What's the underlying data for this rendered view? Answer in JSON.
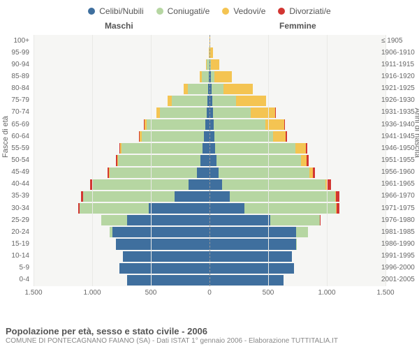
{
  "legend": [
    {
      "label": "Celibi/Nubili",
      "color": "#3f6f9e"
    },
    {
      "label": "Coniugati/e",
      "color": "#b6d6a2"
    },
    {
      "label": "Vedovi/e",
      "color": "#f4c452"
    },
    {
      "label": "Divorziati/e",
      "color": "#d23632"
    }
  ],
  "gender_left": "Maschi",
  "gender_right": "Femmine",
  "y_title_left": "Fasce di età",
  "y_title_right": "Anni di nascita",
  "footer_title": "Popolazione per età, sesso e stato civile - 2006",
  "footer_sub": "COMUNE DI PONTECAGNANO FAIANO (SA) - Dati ISTAT 1° gennaio 2006 - Elaborazione TUTTITALIA.IT",
  "x_ticks": [
    -1500,
    -1000,
    -500,
    0,
    500,
    1000,
    1500
  ],
  "x_tick_labels": [
    "1.500",
    "1.000",
    "500",
    "0",
    "500",
    "1.000",
    "1.500"
  ],
  "x_max": 1500,
  "band_height": 17.14,
  "bar_gap": 2,
  "colors": {
    "single": "#3f6f9e",
    "married": "#b6d6a2",
    "widow": "#f4c452",
    "div": "#d23632",
    "plot_bg": "#f6f6f4"
  },
  "age_labels": [
    "0-4",
    "5-9",
    "10-14",
    "15-19",
    "20-24",
    "25-29",
    "30-34",
    "35-39",
    "40-44",
    "45-49",
    "50-54",
    "55-59",
    "60-64",
    "65-69",
    "70-74",
    "75-79",
    "80-84",
    "85-89",
    "90-94",
    "95-99",
    "100+"
  ],
  "birth_labels": [
    "2001-2005",
    "1996-2000",
    "1991-1995",
    "1986-1990",
    "1981-1985",
    "1976-1980",
    "1971-1975",
    "1966-1970",
    "1961-1965",
    "1956-1960",
    "1951-1955",
    "1946-1950",
    "1941-1945",
    "1936-1940",
    "1931-1935",
    "1926-1930",
    "1921-1925",
    "1916-1920",
    "1911-1915",
    "1906-1910",
    "≤ 1905"
  ],
  "rows": [
    {
      "m": {
        "single": 700,
        "married": 0,
        "widow": 0,
        "div": 0
      },
      "f": {
        "single": 630,
        "married": 0,
        "widow": 0,
        "div": 0
      }
    },
    {
      "m": {
        "single": 770,
        "married": 0,
        "widow": 0,
        "div": 0
      },
      "f": {
        "single": 720,
        "married": 0,
        "widow": 0,
        "div": 0
      }
    },
    {
      "m": {
        "single": 740,
        "married": 0,
        "widow": 0,
        "div": 0
      },
      "f": {
        "single": 700,
        "married": 0,
        "widow": 0,
        "div": 0
      }
    },
    {
      "m": {
        "single": 800,
        "married": 0,
        "widow": 0,
        "div": 0
      },
      "f": {
        "single": 740,
        "married": 5,
        "widow": 0,
        "div": 0
      }
    },
    {
      "m": {
        "single": 830,
        "married": 20,
        "widow": 0,
        "div": 0
      },
      "f": {
        "single": 740,
        "married": 100,
        "widow": 0,
        "div": 0
      }
    },
    {
      "m": {
        "single": 700,
        "married": 220,
        "widow": 0,
        "div": 5
      },
      "f": {
        "single": 520,
        "married": 420,
        "widow": 0,
        "div": 8
      }
    },
    {
      "m": {
        "single": 520,
        "married": 590,
        "widow": 0,
        "div": 10
      },
      "f": {
        "single": 300,
        "married": 780,
        "widow": 5,
        "div": 20
      }
    },
    {
      "m": {
        "single": 300,
        "married": 780,
        "widow": 0,
        "div": 15
      },
      "f": {
        "single": 170,
        "married": 900,
        "widow": 10,
        "div": 25
      }
    },
    {
      "m": {
        "single": 180,
        "married": 820,
        "widow": 0,
        "div": 20
      },
      "f": {
        "single": 110,
        "married": 880,
        "widow": 15,
        "div": 30
      }
    },
    {
      "m": {
        "single": 110,
        "married": 740,
        "widow": 5,
        "div": 15
      },
      "f": {
        "single": 80,
        "married": 770,
        "widow": 30,
        "div": 20
      }
    },
    {
      "m": {
        "single": 80,
        "married": 700,
        "widow": 5,
        "div": 15
      },
      "f": {
        "single": 60,
        "married": 720,
        "widow": 50,
        "div": 15
      }
    },
    {
      "m": {
        "single": 60,
        "married": 690,
        "widow": 10,
        "div": 10
      },
      "f": {
        "single": 50,
        "married": 680,
        "widow": 90,
        "div": 15
      }
    },
    {
      "m": {
        "single": 50,
        "married": 530,
        "widow": 15,
        "div": 5
      },
      "f": {
        "single": 40,
        "married": 500,
        "widow": 110,
        "div": 10
      }
    },
    {
      "m": {
        "single": 35,
        "married": 500,
        "widow": 20,
        "div": 5
      },
      "f": {
        "single": 35,
        "married": 440,
        "widow": 160,
        "div": 10
      }
    },
    {
      "m": {
        "single": 25,
        "married": 400,
        "widow": 30,
        "div": 0
      },
      "f": {
        "single": 30,
        "married": 320,
        "widow": 210,
        "div": 5
      }
    },
    {
      "m": {
        "single": 20,
        "married": 300,
        "widow": 40,
        "div": 0
      },
      "f": {
        "single": 25,
        "married": 200,
        "widow": 260,
        "div": 0
      }
    },
    {
      "m": {
        "single": 12,
        "married": 170,
        "widow": 40,
        "div": 0
      },
      "f": {
        "single": 18,
        "married": 100,
        "widow": 250,
        "div": 0
      }
    },
    {
      "m": {
        "single": 5,
        "married": 60,
        "widow": 20,
        "div": 0
      },
      "f": {
        "single": 10,
        "married": 30,
        "widow": 150,
        "div": 0
      }
    },
    {
      "m": {
        "single": 2,
        "married": 20,
        "widow": 10,
        "div": 0
      },
      "f": {
        "single": 5,
        "married": 8,
        "widow": 70,
        "div": 0
      }
    },
    {
      "m": {
        "single": 0,
        "married": 3,
        "widow": 3,
        "div": 0
      },
      "f": {
        "single": 2,
        "married": 2,
        "widow": 25,
        "div": 0
      }
    },
    {
      "m": {
        "single": 0,
        "married": 0,
        "widow": 1,
        "div": 0
      },
      "f": {
        "single": 0,
        "married": 0,
        "widow": 6,
        "div": 0
      }
    }
  ]
}
